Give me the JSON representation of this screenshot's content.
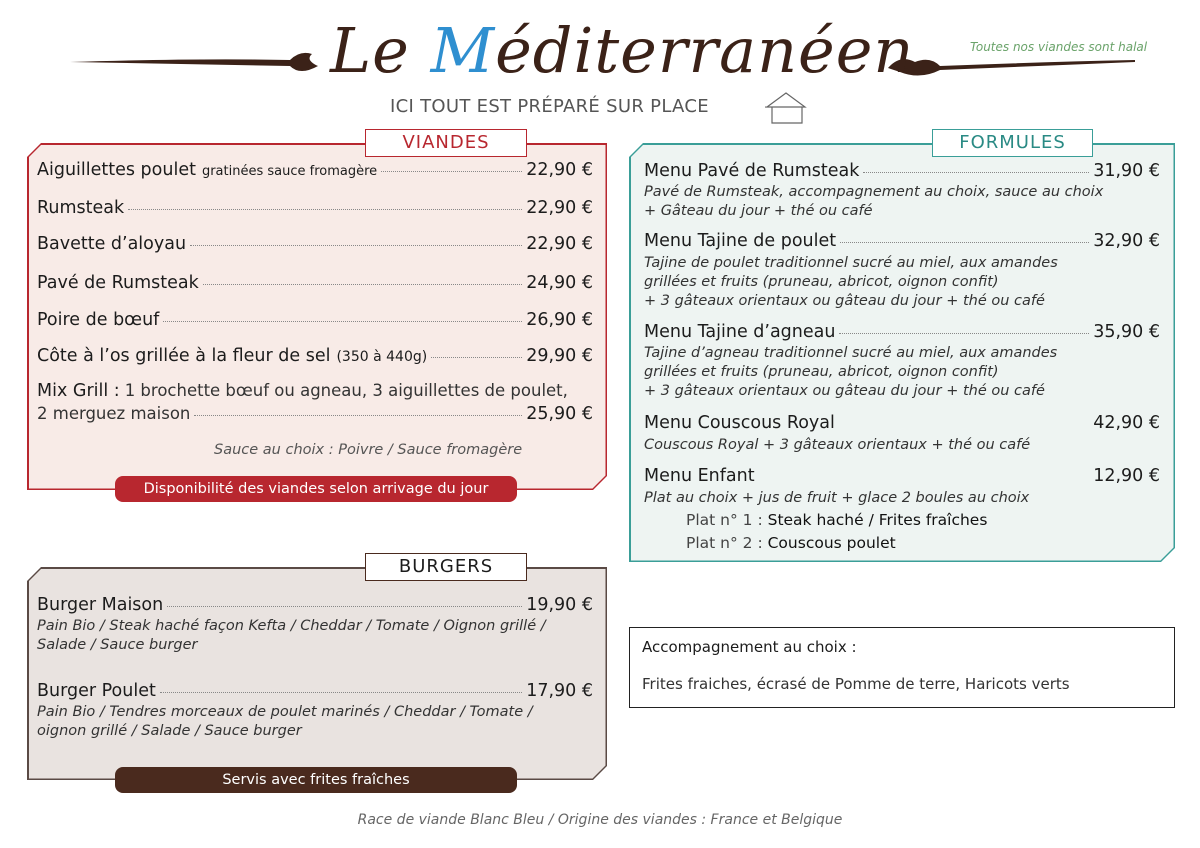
{
  "header": {
    "title_prefix": "Le ",
    "title_initial": "M",
    "title_rest": "éditerranéen",
    "halal_note": "Toutes nos viandes sont halal",
    "tagline": "ICI TOUT EST PRÉPARÉ SUR PLACE",
    "icon": "house-icon"
  },
  "viandes": {
    "title": "VIANDES",
    "items": [
      {
        "name": "Aiguillettes poulet",
        "detail": "gratinées sauce fromagère",
        "price": "22,90 €"
      },
      {
        "name": "Rumsteak",
        "price": "22,90 €"
      },
      {
        "name": "Bavette d’aloyau",
        "price": "22,90 €"
      },
      {
        "name": "Pavé de Rumsteak",
        "price": "24,90 €"
      },
      {
        "name": "Poire de bœuf",
        "price": "26,90 €"
      },
      {
        "name": "Côte à l’os grillée à la fleur de sel",
        "detail": "(350 à 440g)",
        "price": "29,90 €"
      },
      {
        "name": "Mix Grill :",
        "detail": "1 brochette bœuf ou agneau, 3 aiguillettes de poulet,",
        "detail2": "2 merguez maison",
        "price": "25,90 €"
      }
    ],
    "sauce_note": "Sauce au choix : Poivre / Sauce fromagère",
    "availability": "Disponibilité des viandes selon arrivage du jour",
    "color": "#b8272f"
  },
  "burgers": {
    "title": "BURGERS",
    "items": [
      {
        "name": "Burger Maison",
        "price": "19,90 €",
        "desc1": "Pain Bio / Steak haché façon Kefta  / Cheddar / Tomate / Oignon grillé /",
        "desc2": "Salade / Sauce burger"
      },
      {
        "name": "Burger Poulet",
        "price": "17,90 €",
        "desc1": "Pain Bio / Tendres morceaux de poulet marinés / Cheddar / Tomate /",
        "desc2": "oignon grillé / Salade / Sauce burger"
      }
    ],
    "footer": "Servis avec frites fraîches",
    "color": "#4a2a1e"
  },
  "formules": {
    "title": "FORMULES",
    "items": [
      {
        "name": "Menu Pavé de Rumsteak",
        "price": "31,90 €",
        "desc": [
          "Pavé de Rumsteak, accompagnement au choix, sauce au choix",
          "+ Gâteau du jour + thé ou café"
        ]
      },
      {
        "name": "Menu Tajine de poulet",
        "price": "32,90 €",
        "desc": [
          "Tajine de poulet traditionnel sucré au miel, aux amandes",
          "grillées et fruits (pruneau, abricot, oignon confit)",
          "+ 3 gâteaux orientaux ou gâteau du jour + thé ou café"
        ]
      },
      {
        "name": "Menu Tajine d’agneau",
        "price": "35,90 €",
        "desc": [
          "Tajine d’agneau traditionnel sucré au miel, aux amandes",
          "grillées et fruits (pruneau, abricot, oignon confit)",
          "+ 3 gâteaux orientaux ou gâteau du jour + thé ou café"
        ]
      },
      {
        "name": "Menu Couscous Royal",
        "price": "42,90 €",
        "desc": [
          "Couscous Royal + 3 gâteaux orientaux + thé ou café"
        ]
      },
      {
        "name": "Menu Enfant",
        "price": "12,90 €",
        "desc": [
          "Plat au choix + jus de fruit + glace 2 boules au choix"
        ]
      }
    ],
    "plats": [
      {
        "label": "Plat n° 1 :",
        "value": "Steak haché / Frites fraîches"
      },
      {
        "label": "Plat n° 2 :",
        "value": "Couscous poulet"
      }
    ],
    "color": "#3a9e98"
  },
  "accompagnement": {
    "title": "Accompagnement au choix :",
    "text": "Frites fraiches, écrasé de Pomme de terre, Haricots verts"
  },
  "footer": "Race de viande Blanc Bleu / Origine des viandes : France et Belgique"
}
